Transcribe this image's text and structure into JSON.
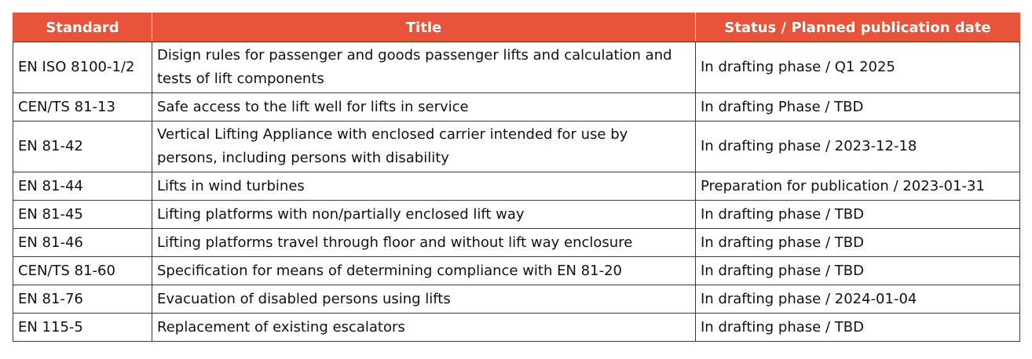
{
  "table": {
    "headers": [
      "Standard",
      "Title",
      "Status / Planned publication date"
    ],
    "header_color": "#e8543b",
    "rows": [
      {
        "standard": "EN ISO 8100-1/2",
        "title": "Disign rules for passenger and goods passenger lifts and calculation and tests of lift components",
        "status": "In drafting phase / Q1 2025"
      },
      {
        "standard": "CEN/TS 81-13",
        "title": "Safe access to the lift well for lifts in service",
        "status": "In drafting Phase / TBD"
      },
      {
        "standard": "EN 81-42",
        "title": "Vertical Lifting Appliance with enclosed carrier intended for use by persons, including persons with disability",
        "status": "In drafting phase / 2023-12-18"
      },
      {
        "standard": "EN 81-44",
        "title": "Lifts in wind turbines",
        "status": "Preparation for publication / 2023-01-31"
      },
      {
        "standard": "EN 81-45",
        "title": "Lifting platforms with non/partially enclosed lift way",
        "status": "In drafting phase / TBD"
      },
      {
        "standard": "EN 81-46",
        "title": "Lifting platforms travel through floor and without lift way enclosure",
        "status": "In drafting phase / TBD"
      },
      {
        "standard": "CEN/TS 81-60",
        "title": "Specification for means of determining compliance with EN 81-20",
        "status": "In drafting phase / TBD"
      },
      {
        "standard": "EN 81-76",
        "title": "Evacuation of disabled persons using lifts",
        "status": "In drafting phase / 2024-01-04"
      },
      {
        "standard": "EN 115-5",
        "title": "Replacement of existing escalators",
        "status": "In drafting phase / TBD"
      }
    ]
  }
}
